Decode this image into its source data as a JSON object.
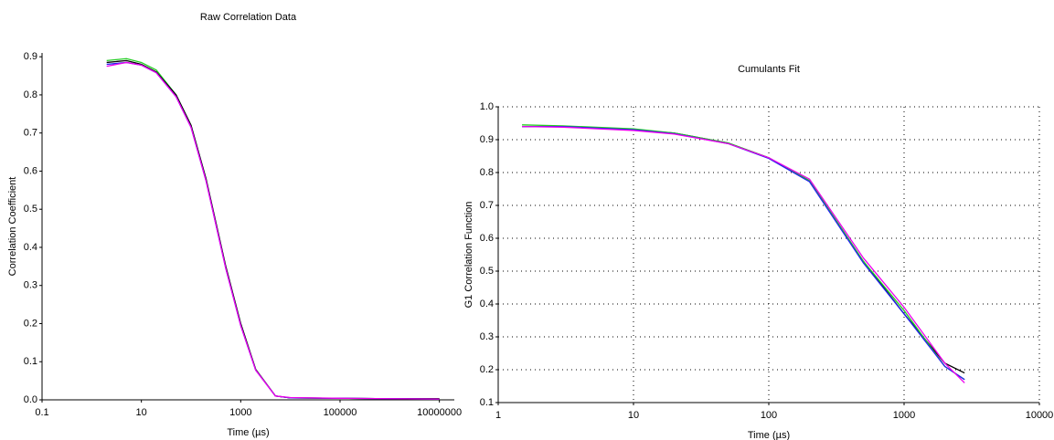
{
  "chart_data": [
    {
      "type": "line",
      "title": "Raw Correlation Data",
      "x_label": "Time (µs)",
      "y_label": "Correlation Coefficient",
      "xscale": "log",
      "grid": false,
      "xlim": [
        0.1,
        20000000
      ],
      "xticks": [
        0.1,
        10,
        1000,
        100000,
        10000000
      ],
      "ylim": [
        0,
        0.91
      ],
      "yticks": [
        {
          "value": 0,
          "label": "0.0"
        },
        0.1,
        0.2,
        0.3,
        0.4,
        0.5,
        0.6,
        0.7,
        0.8,
        0.9
      ],
      "x": [
        2,
        5,
        10,
        20,
        50,
        100,
        200,
        500,
        1000,
        2000,
        5000,
        10000,
        100000,
        1000000,
        10000000
      ],
      "series": [
        {
          "color": "#22cc22",
          "values": [
            0.89,
            0.895,
            0.885,
            0.865,
            0.8,
            0.72,
            0.58,
            0.35,
            0.2,
            0.08,
            0.01,
            0.005,
            0.004,
            0.003,
            0.003
          ]
        },
        {
          "color": "#000000",
          "values": [
            0.885,
            0.89,
            0.88,
            0.86,
            0.8,
            0.72,
            0.58,
            0.35,
            0.2,
            0.08,
            0.01,
            0.005,
            0.004,
            0.003,
            0.003
          ]
        },
        {
          "color": "#2222ee",
          "values": [
            0.88,
            0.885,
            0.878,
            0.858,
            0.795,
            0.715,
            0.575,
            0.345,
            0.195,
            0.078,
            0.01,
            0.005,
            0.004,
            0.003,
            0.002
          ]
        },
        {
          "color": "#ee00ee",
          "values": [
            0.875,
            0.885,
            0.878,
            0.858,
            0.795,
            0.715,
            0.575,
            0.345,
            0.195,
            0.078,
            0.01,
            0.006,
            0.004,
            0.003,
            0.002
          ]
        }
      ]
    },
    {
      "type": "line",
      "title": "Cumulants Fit",
      "x_label": "Time (µs)",
      "y_label": "G1 Correlation Function",
      "xscale": "log",
      "grid": true,
      "xlim": [
        1,
        10000
      ],
      "xticks": [
        1,
        10,
        100,
        1000,
        10000
      ],
      "ylim": [
        0.1,
        1.0
      ],
      "yticks": [
        0.1,
        0.2,
        0.3,
        0.4,
        0.5,
        0.6,
        0.7,
        0.8,
        0.9,
        {
          "value": 1.0,
          "label": "1.0"
        }
      ],
      "x": [
        1.5,
        3,
        10,
        20,
        50,
        100,
        200,
        500,
        1000,
        2000,
        2800
      ],
      "series": [
        {
          "color": "#000000",
          "values": [
            0.94,
            0.94,
            0.93,
            0.92,
            0.89,
            0.845,
            0.775,
            0.53,
            0.37,
            0.22,
            0.19
          ]
        },
        {
          "color": "#22cc22",
          "values": [
            0.945,
            0.942,
            0.933,
            0.92,
            0.89,
            0.845,
            0.775,
            0.53,
            0.38,
            0.21,
            0.17
          ]
        },
        {
          "color": "#2222ee",
          "values": [
            0.94,
            0.94,
            0.93,
            0.918,
            0.888,
            0.843,
            0.772,
            0.525,
            0.37,
            0.21,
            0.17
          ]
        },
        {
          "color": "#ee00ee",
          "values": [
            0.94,
            0.938,
            0.928,
            0.917,
            0.888,
            0.845,
            0.78,
            0.54,
            0.39,
            0.22,
            0.16
          ]
        }
      ]
    }
  ]
}
